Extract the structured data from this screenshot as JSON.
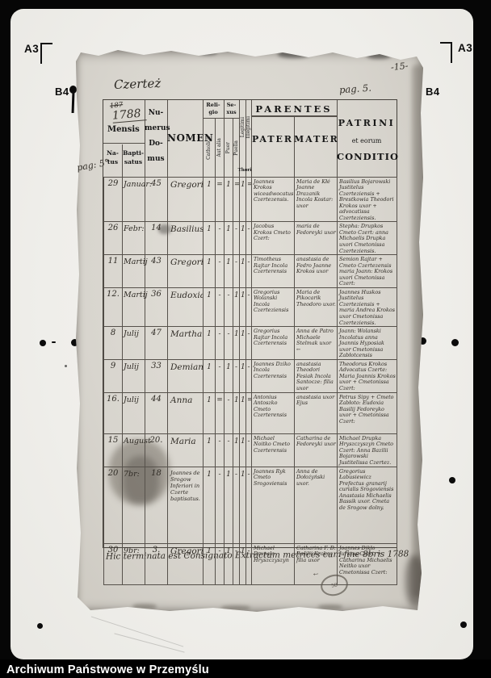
{
  "frame": {
    "a3": "A3",
    "b4": "B4",
    "footer": "Archiwum Państwowe w Przemyślu"
  },
  "page": {
    "title": "Czerteż",
    "page_number": "-15-",
    "pag_right": "pag. 5.",
    "pag_left": "pag: 5°",
    "closing_note": "Hic terminata est Consignato Extractum metrices cum fine 8bris 1788",
    "stamp_number": "58",
    "arrow": "←"
  },
  "colors": {
    "paper": "#d8d5ce",
    "ink": "#302c26",
    "film": "#f1f0ed"
  },
  "table": {
    "year": "1788",
    "year_crossed": "187",
    "headers": {
      "mensis": "Mensis",
      "natus": "Na-\ntus",
      "baptisatus": "Bapti-\nsatus",
      "numerus": "Nu-\nmerus\nDo-\nmus",
      "nomen": "NOMEN",
      "religio": "Reli-\ngio",
      "catholica": "Catholica",
      "aut_alia": "Aut alia",
      "sexus": "Se-\nxus",
      "puer": "Puer",
      "puella": "Puella",
      "legitimi": "Legitimi",
      "illegitimi": "Illegitimi",
      "thori": "Thori",
      "parentes": "PARENTES",
      "pater": "PATER",
      "mater": "MATER",
      "patrini": "PATRINI",
      "et_eorum": "et eorum",
      "conditio": "CONDITIO"
    },
    "rows": [
      {
        "natus": "29",
        "mensis": "Januar:",
        "domus": "45",
        "nomen": "Gregorius",
        "cat": "1",
        "alia": "=",
        "puer": "1",
        "puella": "=",
        "leg": "1",
        "illeg": "=",
        "pater": "Joannes Krokos wiceadwocatus Czertezensis.",
        "mater": "Maria de Kłé Joanne Drazanik Incola Kostar: uxor",
        "patrini": "Basilius Bojarowski Justitelus Czerteziensis + Brestkowia Theodori Krokos uxor + advocatissa Czerteziensis."
      },
      {
        "natus": "26",
        "mensis": "Febr:",
        "domus": "14",
        "nomen": "Basilius",
        "cat": "1",
        "alia": "-",
        "puer": "1",
        "puella": "-",
        "leg": "1",
        "illeg": "-",
        "pater": "Jacobus Krokos Cmeto Czert:",
        "mater": "maria de Fedoreyki uxor",
        "patrini": "Stepha: Drupkos Cmeto Czert: anna Michaelis Drupka uxori Cmetonissa Czerteziensis."
      },
      {
        "natus": "11",
        "mensis": "Martij",
        "domus": "43",
        "nomen": "Gregorius",
        "cat": "1",
        "alia": "-",
        "puer": "1",
        "puella": "-",
        "leg": "1",
        "illeg": "-",
        "pater": "Timotheus Rajtar Incola Czerterensis",
        "mater": "anastasia de Fedro Joanne Krokos uxor",
        "patrini": "Semion Rajtar + Cmeto Czertezensis maria Joann: Krokos uxori Cmetonissa Czert:"
      },
      {
        "natus": "12.",
        "mensis": "Martij",
        "domus": "36",
        "nomen": "Eudoxia",
        "cat": "1",
        "alia": "-",
        "puer": "-",
        "puella": "1",
        "leg": "1",
        "illeg": "-",
        "pater": "Gregorius Wolanski Incola Czerteziensis",
        "mater": "Maria de Pikocarik Theodoro uxor.",
        "patrini": "Joannes Huskos Justitelus Czerteziensis + maria Andrea Krokos uxor Cmetonissa Czerteziensis."
      },
      {
        "natus": "8",
        "mensis": "Julij",
        "domus": "47",
        "nomen": "Martha",
        "cat": "1",
        "alia": "-",
        "puer": "-",
        "puella": "1",
        "leg": "1",
        "illeg": "-",
        "pater": "Gregorius Rajtar Incola Czerterensis",
        "mater": "Anna de Patro Michaele Stelmak uxor ←",
        "patrini": "Joann: Wolanski Incolatus anna Joannis Hyposiak uxor Cmetonissa Zabłotcensis"
      },
      {
        "natus": "9",
        "mensis": "Julij",
        "domus": "33",
        "nomen": "Demian",
        "cat": "1",
        "alia": "-",
        "puer": "1",
        "puella": "-",
        "leg": "1",
        "illeg": "-",
        "pater": "Joannes Dziko Incola Czerterensis",
        "mater": "anastasia Theodori Fesiak Incola Santocze: filia uxor",
        "patrini": "Theodorus Krokos Advocatus Czerte: Maria Joannis Krokos uxor + Cmetonissa Czert:"
      },
      {
        "natus": "16.",
        "mensis": "Julij",
        "domus": "44",
        "nomen": "Anna",
        "cat": "1",
        "alia": "=",
        "puer": "-",
        "puella": "1",
        "leg": "1",
        "illeg": "=",
        "pater": "Antonius Antoszko Cmeto Czerterensis",
        "mater": "anastasia uxor Ejus",
        "patrini": "Petrus Sipy + Cmeto Zabłoto: Eudoxia Basilij Fedoreyko uxor + Cmetonissa Czert:"
      },
      {
        "natus": "15",
        "mensis": "August",
        "domus": "20.",
        "nomen": "Maria",
        "cat": "1",
        "alia": "-",
        "puer": "-",
        "puella": "1",
        "leg": "1",
        "illeg": "-",
        "pater": "Michael Noitko Cmeto Czerterensis",
        "mater": "Catharina de Fedoreyki uxor",
        "patrini": "Michael Drupka Hryszczyszyn Cmeto Czert: Anna Bazilii Bojarowski Justitelissa Czertez."
      },
      {
        "natus": "20",
        "mensis": "7br:",
        "domus": "18",
        "nomen": "Joannes de Srogow Inferiori in Czerte baptisatus.",
        "cat": "1",
        "alia": "-",
        "puer": "1",
        "puella": "-",
        "leg": "1",
        "illeg": "-",
        "pater": "Joannes Ryk Cmeto Srogoviensis",
        "mater": "Anna de Dołożyński uxor.",
        "patrini": "Gregorius Łabusiewicz Prefectus granarij curialis Srogoviensis Anastasia Michaelis Bassik uxor. Cmeta de Srogow dolny."
      },
      {
        "natus": "30",
        "mensis": "9br:",
        "domus": "3.",
        "nomen": "Gregorius",
        "cat": "1",
        "alia": "-",
        "puer": "1",
        "puella": "-",
        "leg": "1",
        "illeg": "-",
        "pater": "Michael Drupało Hryszczyszyn",
        "mater": "Catharina F. D. Basilii Krokos filia uxor",
        "patrini": "Joannes Dikło Juratus Czert: + Catharina Michaelis Neitko uxor Cmetonissa Czert:"
      }
    ]
  }
}
